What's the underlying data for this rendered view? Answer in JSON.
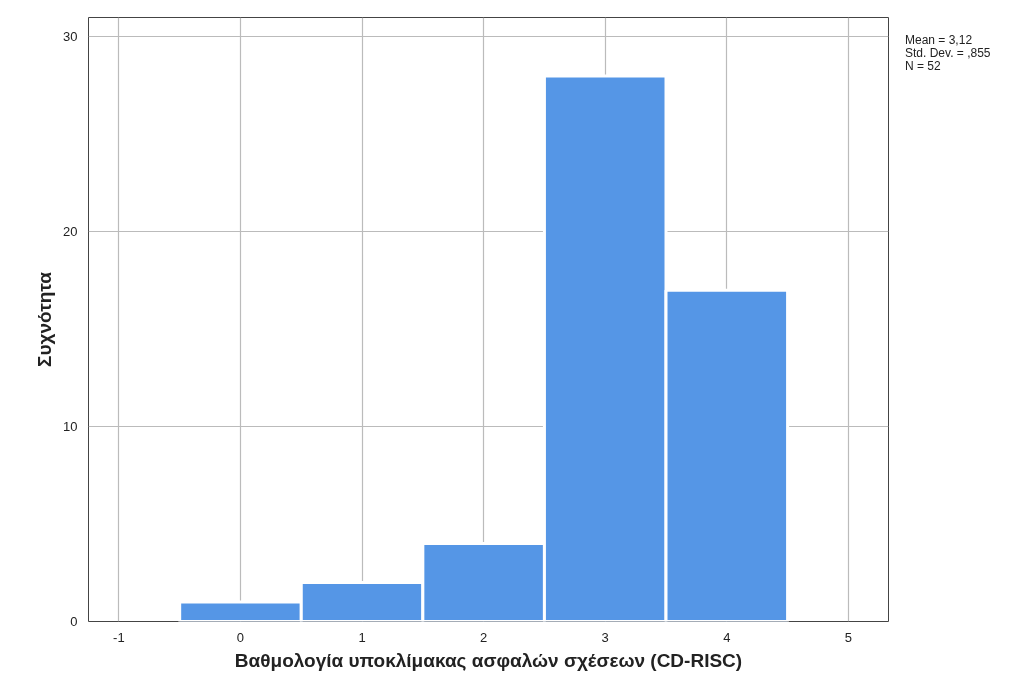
{
  "chart_data": {
    "type": "histogram",
    "xlabel": "Βαθμολογία υποκλίμακας ασφαλών σχέσεων (CD-RISC)",
    "ylabel": "Συχνότητα",
    "bins": [
      -0.5,
      0.5,
      1.5,
      2.5,
      3.5,
      4.5
    ],
    "values": [
      1,
      2,
      4,
      28,
      17
    ],
    "color": "#5596e6",
    "xlim": [
      -1.25,
      5.33
    ],
    "xticks": [
      -1,
      0,
      1,
      2,
      3,
      4,
      5
    ],
    "ylim": [
      0,
      31
    ],
    "yticks": [
      0,
      10,
      20,
      30
    ],
    "grid": true,
    "annotations": [
      "Mean = 3,12",
      "Std. Dev. = ,855",
      "N = 52"
    ]
  }
}
